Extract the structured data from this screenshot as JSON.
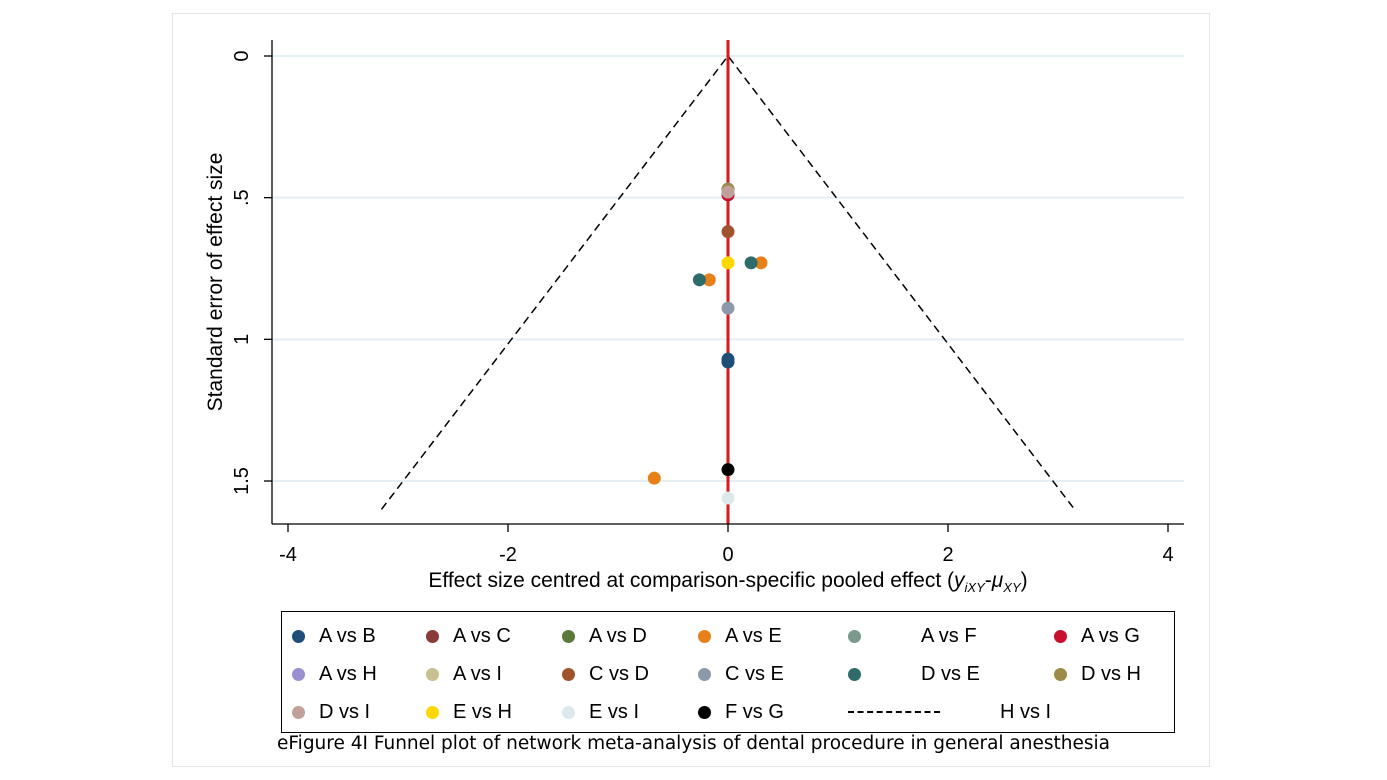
{
  "chart_data": {
    "type": "scatter",
    "title": "",
    "xlabel": "Effect size centred at comparison-specific pooled effect",
    "xlabel_math": {
      "open": "(",
      "y_main": "y",
      "y_sub": "iXY",
      "dash": "-",
      "mu_main": "μ",
      "mu_sub": "XY",
      "close": ")"
    },
    "ylabel": "Standard error of effect size",
    "xlim": [
      -4.2,
      4.1
    ],
    "ylim": [
      1.65,
      0
    ],
    "y_reversed": true,
    "x_ticks": [
      "-4",
      "-2",
      "0",
      "2",
      "4"
    ],
    "y_ticks": [
      "0",
      ".5",
      "1",
      "1.5"
    ],
    "grid": "horizontal",
    "reference_line": {
      "x": 0,
      "color": "#d7191c"
    },
    "funnel": {
      "apex": [
        0,
        0
      ],
      "left": [
        -3.15,
        1.6
      ],
      "right": [
        3.15,
        1.6
      ]
    },
    "legend_position": "bottom",
    "series": [
      {
        "name": "A vs B",
        "color": "#1f4e79",
        "points": [
          [
            0,
            1.07
          ],
          [
            0,
            1.08
          ]
        ]
      },
      {
        "name": "A vs C",
        "color": "#8b3a3a",
        "points": [
          [
            0,
            0.49
          ]
        ]
      },
      {
        "name": "A vs D",
        "color": "#5a7a3a",
        "points": [
          [
            0,
            0.48
          ]
        ]
      },
      {
        "name": "A vs E",
        "color": "#e8801a",
        "points": [
          [
            0.3,
            0.73
          ],
          [
            -0.17,
            0.79
          ],
          [
            -0.67,
            1.49
          ]
        ]
      },
      {
        "name": "A vs F",
        "color": "#7a9a8e",
        "points": [
          [
            0,
            0.47
          ]
        ]
      },
      {
        "name": "A vs G",
        "color": "#c8102e",
        "points": [
          [
            0,
            0.49
          ]
        ]
      },
      {
        "name": "A vs H",
        "color": "#9a8fd0",
        "points": [
          [
            0,
            0.47
          ]
        ]
      },
      {
        "name": "A vs I",
        "color": "#c8c090",
        "points": [
          [
            0,
            0.48
          ]
        ]
      },
      {
        "name": "C vs D",
        "color": "#a0522d",
        "points": [
          [
            0,
            0.62
          ]
        ]
      },
      {
        "name": "C vs E",
        "color": "#8a9aaa",
        "points": [
          [
            0,
            0.89
          ]
        ]
      },
      {
        "name": "D vs E",
        "color": "#2e6b6b",
        "points": [
          [
            0.21,
            0.73
          ],
          [
            -0.26,
            0.79
          ]
        ]
      },
      {
        "name": "D vs H",
        "color": "#9c8a4a",
        "points": [
          [
            0,
            0.47
          ]
        ]
      },
      {
        "name": "D vs I",
        "color": "#c0a098",
        "points": [
          [
            0,
            0.48
          ]
        ]
      },
      {
        "name": "E vs H",
        "color": "#ffd700",
        "points": [
          [
            0,
            0.73
          ]
        ]
      },
      {
        "name": "E vs I",
        "color": "#dde8ec",
        "points": [
          [
            0,
            1.56
          ]
        ]
      },
      {
        "name": "F vs G",
        "color": "#000000",
        "points": [
          [
            0,
            1.46
          ]
        ]
      },
      {
        "name": "H vs I",
        "color": "#000000",
        "line": "dashed",
        "points": []
      }
    ]
  },
  "caption": "eFigure 4I Funnel plot of network meta-analysis of dental procedure in general anesthesia"
}
